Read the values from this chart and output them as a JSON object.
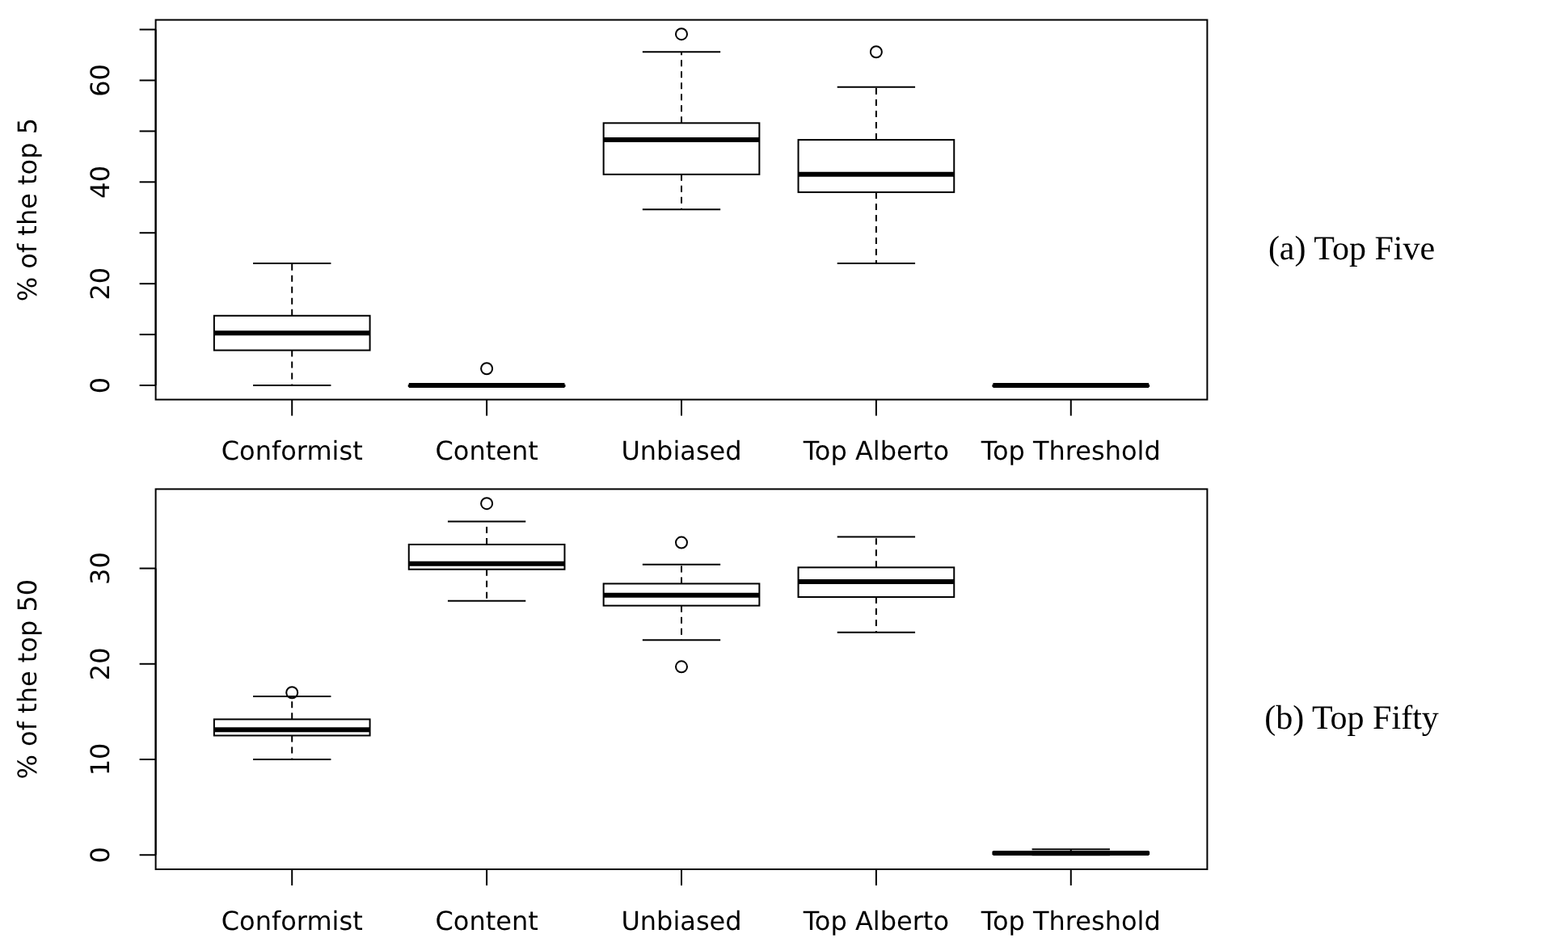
{
  "chart_data": [
    {
      "type": "box",
      "annotations": [
        "(a) Top Five"
      ],
      "ylabel": "% of the top 5",
      "categories": [
        "Conformist",
        "Content",
        "Unbiased",
        "Top Alberto",
        "Top Threshold"
      ],
      "boxes": [
        {
          "low": 0,
          "q1": 6.9,
          "median": 10.3,
          "q3": 13.7,
          "high": 24.0
        },
        {
          "low": 0,
          "q1": 0,
          "median": 0,
          "q3": 0,
          "high": 0,
          "outliers": [
            3.3
          ]
        },
        {
          "low": 34.6,
          "q1": 41.5,
          "median": 48.3,
          "q3": 51.6,
          "high": 65.6,
          "outliers": [
            69.1
          ]
        },
        {
          "low": 24.0,
          "q1": 38.0,
          "median": 41.5,
          "q3": 48.3,
          "high": 58.7,
          "outliers": [
            65.6
          ]
        },
        {
          "low": 0,
          "q1": 0,
          "median": 0,
          "q3": 0,
          "high": 0
        }
      ],
      "ylim": [
        -2.8,
        71.9
      ],
      "yticks": [
        0,
        {
          "value": 10,
          "label": null
        },
        20,
        {
          "value": 30,
          "label": null
        },
        40,
        {
          "value": 50,
          "label": null
        },
        60,
        {
          "value": 70,
          "label": null
        }
      ]
    },
    {
      "type": "box",
      "annotations": [
        "(b) Top Fifty"
      ],
      "ylabel": "% of the top 50",
      "categories": [
        "Conformist",
        "Content",
        "Unbiased",
        "Top Alberto",
        "Top Threshold"
      ],
      "boxes": [
        {
          "low": 10.0,
          "q1": 12.5,
          "median": 13.1,
          "q3": 14.2,
          "high": 16.6,
          "outliers": [
            17.0
          ]
        },
        {
          "low": 26.6,
          "q1": 29.9,
          "median": 30.5,
          "q3": 32.5,
          "high": 34.9,
          "outliers": [
            36.8
          ]
        },
        {
          "low": 22.5,
          "q1": 26.1,
          "median": 27.2,
          "q3": 28.4,
          "high": 30.4,
          "outliers": [
            19.7,
            32.7
          ]
        },
        {
          "low": 23.3,
          "q1": 27.0,
          "median": 28.6,
          "q3": 30.1,
          "high": 33.3
        },
        {
          "low": 0,
          "q1": 0.1,
          "median": 0.2,
          "q3": 0.3,
          "high": 0.6
        }
      ],
      "ylim": [
        -1.5,
        38.3
      ],
      "yticks": [
        0,
        10,
        20,
        30
      ]
    }
  ]
}
